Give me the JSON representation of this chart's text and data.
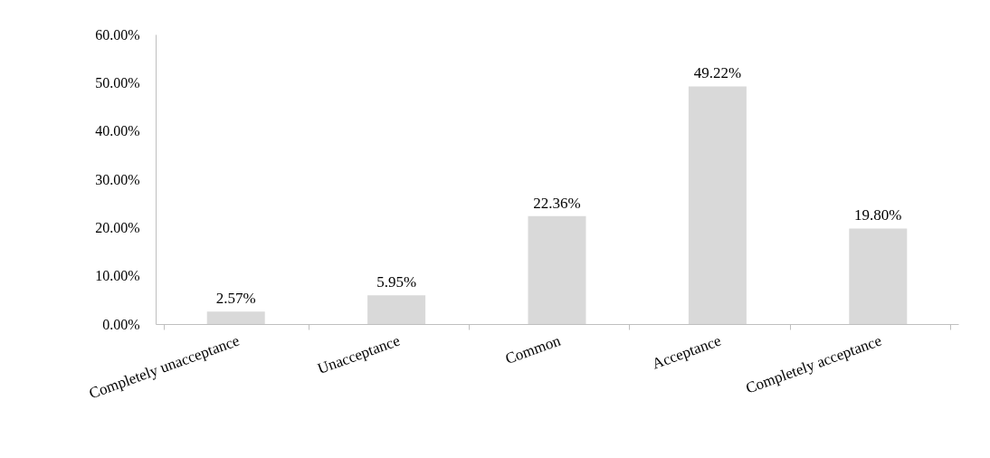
{
  "chart_data": {
    "type": "bar",
    "categories": [
      "Completely unacceptance",
      "Unacceptance",
      "Common",
      "Acceptance",
      "Completely acceptance"
    ],
    "values": [
      2.57,
      5.95,
      22.36,
      49.22,
      19.8
    ],
    "value_labels": [
      "2.57%",
      "5.95%",
      "22.36%",
      "49.22%",
      "19.80%"
    ],
    "color": "#d9d9d9",
    "ylim": [
      0,
      60
    ],
    "yticks": [
      {
        "value": 0,
        "label": "0.00%"
      },
      {
        "value": 10,
        "label": "10.00%"
      },
      {
        "value": 20,
        "label": "20.00%"
      },
      {
        "value": 30,
        "label": "30.00%"
      },
      {
        "value": 40,
        "label": "40.00%"
      },
      {
        "value": 50,
        "label": "50.00%"
      },
      {
        "value": 60,
        "label": "60.00%"
      }
    ],
    "grid": false
  }
}
